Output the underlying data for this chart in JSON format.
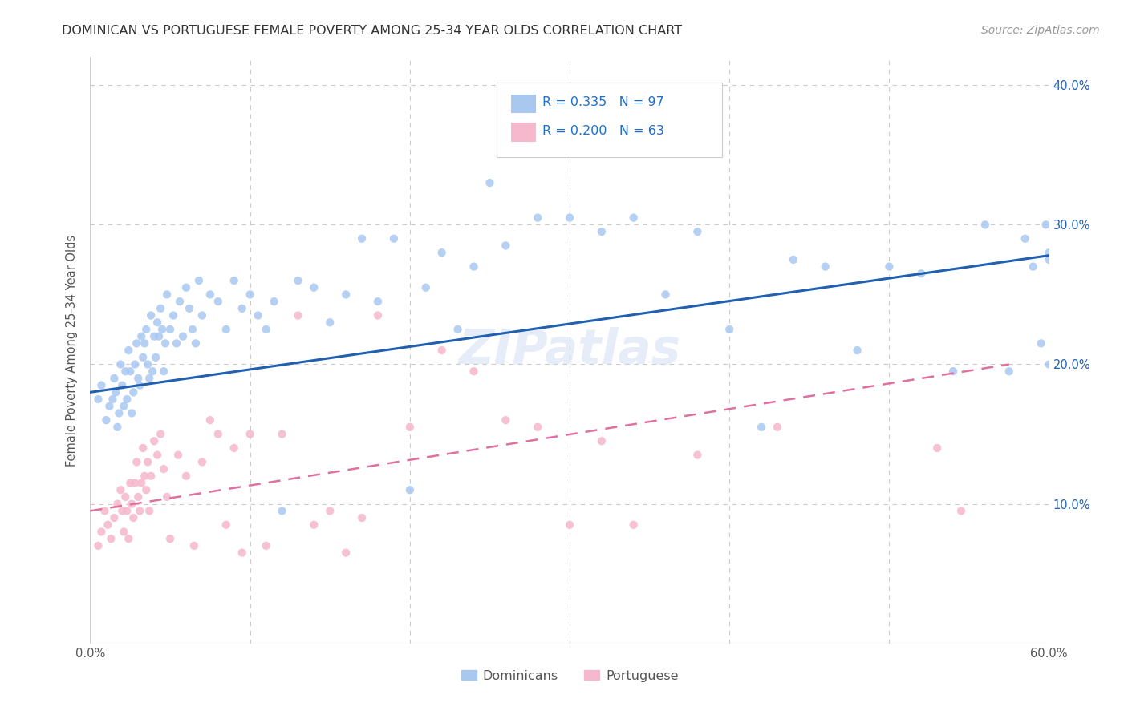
{
  "title": "DOMINICAN VS PORTUGUESE FEMALE POVERTY AMONG 25-34 YEAR OLDS CORRELATION CHART",
  "source": "Source: ZipAtlas.com",
  "ylabel": "Female Poverty Among 25-34 Year Olds",
  "xlim": [
    0,
    0.6
  ],
  "ylim": [
    0,
    0.42
  ],
  "xticklabels": [
    "0.0%",
    "",
    "",
    "",
    "",
    "",
    "60.0%"
  ],
  "right_yticklabels": [
    "10.0%",
    "20.0%",
    "30.0%",
    "40.0%"
  ],
  "dominican_R": "0.335",
  "dominican_N": "97",
  "portuguese_R": "0.200",
  "portuguese_N": "63",
  "dominican_color": "#A8C8F0",
  "portuguese_color": "#F5B8CC",
  "dominican_line_color": "#2060B0",
  "portuguese_line_color": "#E070A0",
  "background_color": "#FFFFFF",
  "grid_color": "#CCCCCC",
  "watermark": "ZIPatlas",
  "dominican_scatter_x": [
    0.005,
    0.007,
    0.01,
    0.012,
    0.014,
    0.015,
    0.016,
    0.017,
    0.018,
    0.019,
    0.02,
    0.021,
    0.022,
    0.023,
    0.024,
    0.025,
    0.026,
    0.027,
    0.028,
    0.029,
    0.03,
    0.031,
    0.032,
    0.033,
    0.034,
    0.035,
    0.036,
    0.037,
    0.038,
    0.039,
    0.04,
    0.041,
    0.042,
    0.043,
    0.044,
    0.045,
    0.046,
    0.047,
    0.048,
    0.05,
    0.052,
    0.054,
    0.056,
    0.058,
    0.06,
    0.062,
    0.064,
    0.066,
    0.068,
    0.07,
    0.075,
    0.08,
    0.085,
    0.09,
    0.095,
    0.1,
    0.105,
    0.11,
    0.115,
    0.12,
    0.13,
    0.14,
    0.15,
    0.16,
    0.17,
    0.18,
    0.19,
    0.2,
    0.21,
    0.22,
    0.23,
    0.24,
    0.25,
    0.26,
    0.28,
    0.3,
    0.32,
    0.34,
    0.36,
    0.38,
    0.4,
    0.42,
    0.44,
    0.46,
    0.48,
    0.5,
    0.52,
    0.54,
    0.56,
    0.575,
    0.585,
    0.59,
    0.595,
    0.598,
    0.6,
    0.6,
    0.6
  ],
  "dominican_scatter_y": [
    0.175,
    0.185,
    0.16,
    0.17,
    0.175,
    0.19,
    0.18,
    0.155,
    0.165,
    0.2,
    0.185,
    0.17,
    0.195,
    0.175,
    0.21,
    0.195,
    0.165,
    0.18,
    0.2,
    0.215,
    0.19,
    0.185,
    0.22,
    0.205,
    0.215,
    0.225,
    0.2,
    0.19,
    0.235,
    0.195,
    0.22,
    0.205,
    0.23,
    0.22,
    0.24,
    0.225,
    0.195,
    0.215,
    0.25,
    0.225,
    0.235,
    0.215,
    0.245,
    0.22,
    0.255,
    0.24,
    0.225,
    0.215,
    0.26,
    0.235,
    0.25,
    0.245,
    0.225,
    0.26,
    0.24,
    0.25,
    0.235,
    0.225,
    0.245,
    0.095,
    0.26,
    0.255,
    0.23,
    0.25,
    0.29,
    0.245,
    0.29,
    0.11,
    0.255,
    0.28,
    0.225,
    0.27,
    0.33,
    0.285,
    0.305,
    0.305,
    0.295,
    0.305,
    0.25,
    0.295,
    0.225,
    0.155,
    0.275,
    0.27,
    0.21,
    0.27,
    0.265,
    0.195,
    0.3,
    0.195,
    0.29,
    0.27,
    0.215,
    0.3,
    0.2,
    0.28,
    0.275
  ],
  "portuguese_scatter_x": [
    0.005,
    0.007,
    0.009,
    0.011,
    0.013,
    0.015,
    0.017,
    0.019,
    0.02,
    0.021,
    0.022,
    0.023,
    0.024,
    0.025,
    0.026,
    0.027,
    0.028,
    0.029,
    0.03,
    0.031,
    0.032,
    0.033,
    0.034,
    0.035,
    0.036,
    0.037,
    0.038,
    0.04,
    0.042,
    0.044,
    0.046,
    0.048,
    0.05,
    0.055,
    0.06,
    0.065,
    0.07,
    0.075,
    0.08,
    0.085,
    0.09,
    0.095,
    0.1,
    0.11,
    0.12,
    0.13,
    0.14,
    0.15,
    0.16,
    0.17,
    0.18,
    0.2,
    0.22,
    0.24,
    0.26,
    0.28,
    0.3,
    0.32,
    0.34,
    0.38,
    0.43,
    0.53,
    0.545
  ],
  "portuguese_scatter_y": [
    0.07,
    0.08,
    0.095,
    0.085,
    0.075,
    0.09,
    0.1,
    0.11,
    0.095,
    0.08,
    0.105,
    0.095,
    0.075,
    0.115,
    0.1,
    0.09,
    0.115,
    0.13,
    0.105,
    0.095,
    0.115,
    0.14,
    0.12,
    0.11,
    0.13,
    0.095,
    0.12,
    0.145,
    0.135,
    0.15,
    0.125,
    0.105,
    0.075,
    0.135,
    0.12,
    0.07,
    0.13,
    0.16,
    0.15,
    0.085,
    0.14,
    0.065,
    0.15,
    0.07,
    0.15,
    0.235,
    0.085,
    0.095,
    0.065,
    0.09,
    0.235,
    0.155,
    0.21,
    0.195,
    0.16,
    0.155,
    0.085,
    0.145,
    0.085,
    0.135,
    0.155,
    0.14,
    0.095
  ],
  "dominican_line_x": [
    0.0,
    0.6
  ],
  "dominican_line_y": [
    0.18,
    0.278
  ],
  "portuguese_line_x": [
    0.0,
    0.575
  ],
  "portuguese_line_y": [
    0.095,
    0.2
  ]
}
